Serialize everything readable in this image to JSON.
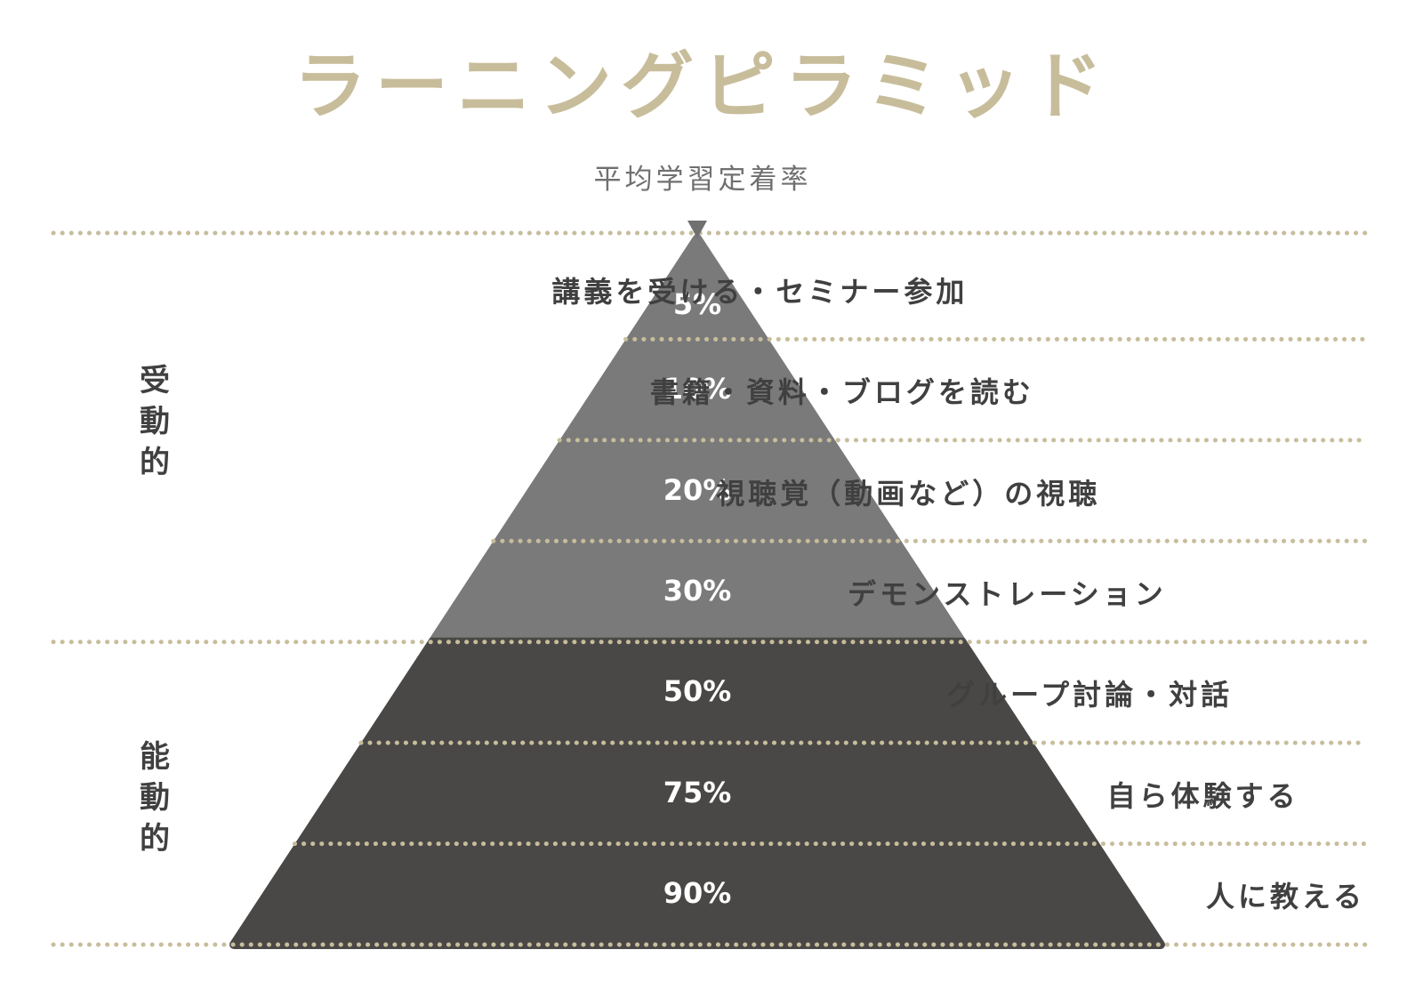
{
  "title": "ラーニングピラミッド",
  "subtitle": "平均学習定着率",
  "categories": [
    {
      "label": "受動的"
    },
    {
      "label": "能動的"
    }
  ],
  "layers": [
    {
      "rate": "5%",
      "activity": "講義を受ける・セミナー参加",
      "group": "passive"
    },
    {
      "rate": "10%",
      "activity": "書籍・資料・ブログを読む",
      "group": "passive"
    },
    {
      "rate": "20%",
      "activity": "視聴覚（動画など）の視聴",
      "group": "passive"
    },
    {
      "rate": "30%",
      "activity": "デモンストレーション",
      "group": "passive"
    },
    {
      "rate": "50%",
      "activity": "グループ討論・対話",
      "group": "active"
    },
    {
      "rate": "75%",
      "activity": "自ら体験する",
      "group": "active"
    },
    {
      "rate": "90%",
      "activity": "人に教える",
      "group": "active"
    }
  ],
  "colors": {
    "accent": "#c8bd9b",
    "passive_fill": "#7a7a7a",
    "active_fill": "#4a4846",
    "subtitle_text": "#707070",
    "body_text": "#404040"
  }
}
